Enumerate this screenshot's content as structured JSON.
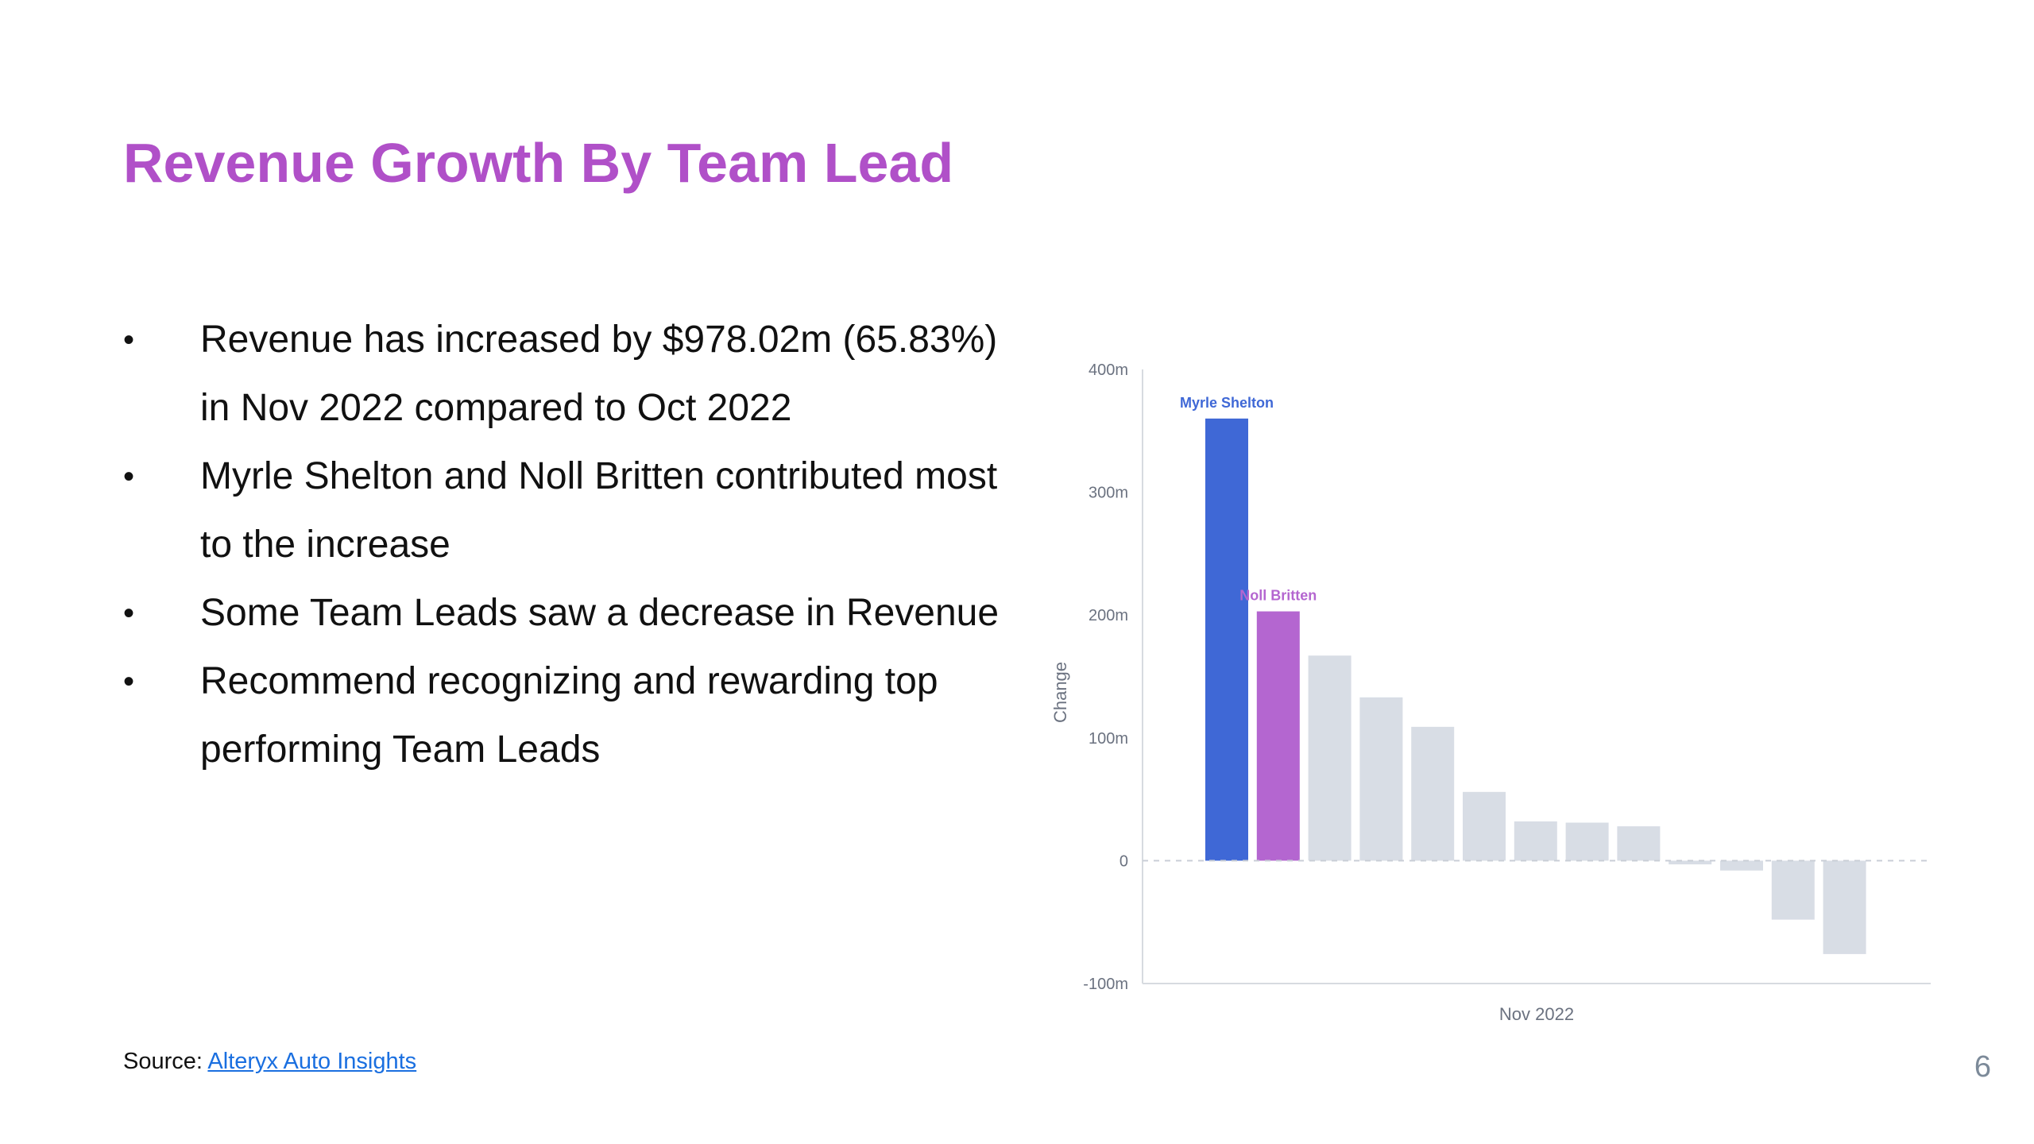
{
  "slide": {
    "title": "Revenue Growth By Team Lead",
    "page_number": "6"
  },
  "bullets": [
    "Revenue has increased by $978.02m (65.83%) in Nov 2022 compared to Oct 2022",
    "Myrle Shelton and Noll Britten contributed most to the increase",
    "Some Team Leads saw a decrease in Revenue",
    "Recommend recognizing and rewarding top performing Team Leads"
  ],
  "bullet_marker": "•",
  "source": {
    "label": "Source:",
    "link_text": "Alteryx Auto Insights"
  },
  "chart_data": {
    "type": "bar",
    "title": "",
    "xlabel": "Nov 2022",
    "ylabel": "Change",
    "ylim": [
      -100,
      400
    ],
    "yticks": [
      400,
      300,
      200,
      100,
      0,
      -100
    ],
    "ytick_labels": [
      "400m",
      "300m",
      "200m",
      "100m",
      "0",
      "-100m"
    ],
    "grid": false,
    "zero_line": "dashed",
    "bars": [
      {
        "label": "Myrle Shelton",
        "value": 360,
        "color": "#3f68d6"
      },
      {
        "label": "Noll Britten",
        "value": 203,
        "color": "#b466d0"
      },
      {
        "label": "",
        "value": 167,
        "color": "#d8dde5"
      },
      {
        "label": "",
        "value": 133,
        "color": "#d8dde5"
      },
      {
        "label": "",
        "value": 109,
        "color": "#d8dde5"
      },
      {
        "label": "",
        "value": 56,
        "color": "#d8dde5"
      },
      {
        "label": "",
        "value": 32,
        "color": "#d8dde5"
      },
      {
        "label": "",
        "value": 31,
        "color": "#d8dde5"
      },
      {
        "label": "",
        "value": 28,
        "color": "#d8dde5"
      },
      {
        "label": "",
        "value": -3,
        "color": "#d8dde5"
      },
      {
        "label": "",
        "value": -8,
        "color": "#d8dde5"
      },
      {
        "label": "",
        "value": -48,
        "color": "#d8dde5"
      },
      {
        "label": "",
        "value": -76,
        "color": "#d8dde5"
      }
    ]
  },
  "colors": {
    "title": "#b050c8",
    "highlight_primary": "#3f68d6",
    "highlight_secondary": "#b466d0",
    "other_bars": "#d8dde5",
    "link": "#1a6fe0"
  }
}
